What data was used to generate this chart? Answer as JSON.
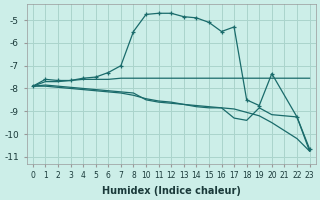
{
  "xlabel": "Humidex (Indice chaleur)",
  "ylabel": "",
  "background_color": "#cceee8",
  "grid_color": "#aad4cc",
  "line_color": "#1a6b6b",
  "xtick_labels": [
    "0",
    "1",
    "2",
    "3",
    "4",
    "5",
    "6",
    "7",
    "8",
    "10",
    "11",
    "12",
    "13",
    "14",
    "15",
    "16",
    "17",
    "18",
    "19",
    "20",
    "21",
    "22",
    "23"
  ],
  "yticks": [
    -5,
    -6,
    -7,
    -8,
    -9,
    -10,
    -11
  ],
  "xlim": [
    -0.5,
    22.5
  ],
  "ylim": [
    -11.3,
    -4.3
  ],
  "lines": [
    {
      "xi": [
        0,
        1,
        2,
        3,
        4,
        5,
        6,
        7,
        8,
        9,
        10,
        11,
        12,
        13,
        14,
        15,
        16,
        17,
        18,
        19,
        21,
        22
      ],
      "y": [
        -7.9,
        -7.6,
        -7.65,
        -7.65,
        -7.55,
        -7.5,
        -7.3,
        -7.0,
        -5.5,
        -4.75,
        -4.7,
        -4.7,
        -4.85,
        -4.9,
        -5.1,
        -5.5,
        -5.3,
        -8.5,
        -8.75,
        -7.35,
        -9.25,
        -10.65
      ],
      "marker": true
    },
    {
      "xi": [
        0,
        1,
        2,
        3,
        4,
        5,
        6,
        7,
        8,
        9,
        10,
        11,
        12,
        13,
        14,
        15,
        16,
        17,
        18,
        19,
        21,
        22
      ],
      "y": [
        -7.9,
        -7.7,
        -7.7,
        -7.65,
        -7.6,
        -7.6,
        -7.6,
        -7.55,
        -7.55,
        -7.55,
        -7.55,
        -7.55,
        -7.55,
        -7.55,
        -7.55,
        -7.55,
        -7.55,
        -7.55,
        -7.55,
        -7.55,
        -7.55,
        -7.55
      ],
      "marker": false
    },
    {
      "xi": [
        0,
        1,
        2,
        3,
        4,
        5,
        6,
        7,
        8,
        9,
        10,
        11,
        12,
        13,
        14,
        15,
        16,
        17,
        18,
        19,
        21,
        22
      ],
      "y": [
        -7.9,
        -7.9,
        -7.95,
        -8.0,
        -8.05,
        -8.1,
        -8.15,
        -8.2,
        -8.3,
        -8.45,
        -8.55,
        -8.6,
        -8.7,
        -8.75,
        -8.8,
        -8.85,
        -8.9,
        -9.05,
        -9.2,
        -9.5,
        -10.2,
        -10.75
      ],
      "marker": false
    },
    {
      "xi": [
        0,
        1,
        2,
        3,
        4,
        5,
        6,
        7,
        8,
        9,
        10,
        11,
        12,
        13,
        14,
        15,
        16,
        17,
        18,
        19,
        21,
        22
      ],
      "y": [
        -7.9,
        -7.85,
        -7.9,
        -7.95,
        -8.0,
        -8.05,
        -8.1,
        -8.15,
        -8.2,
        -8.5,
        -8.6,
        -8.65,
        -8.7,
        -8.8,
        -8.85,
        -8.85,
        -9.3,
        -9.4,
        -8.85,
        -9.15,
        -9.25,
        -10.75
      ],
      "marker": false
    }
  ]
}
